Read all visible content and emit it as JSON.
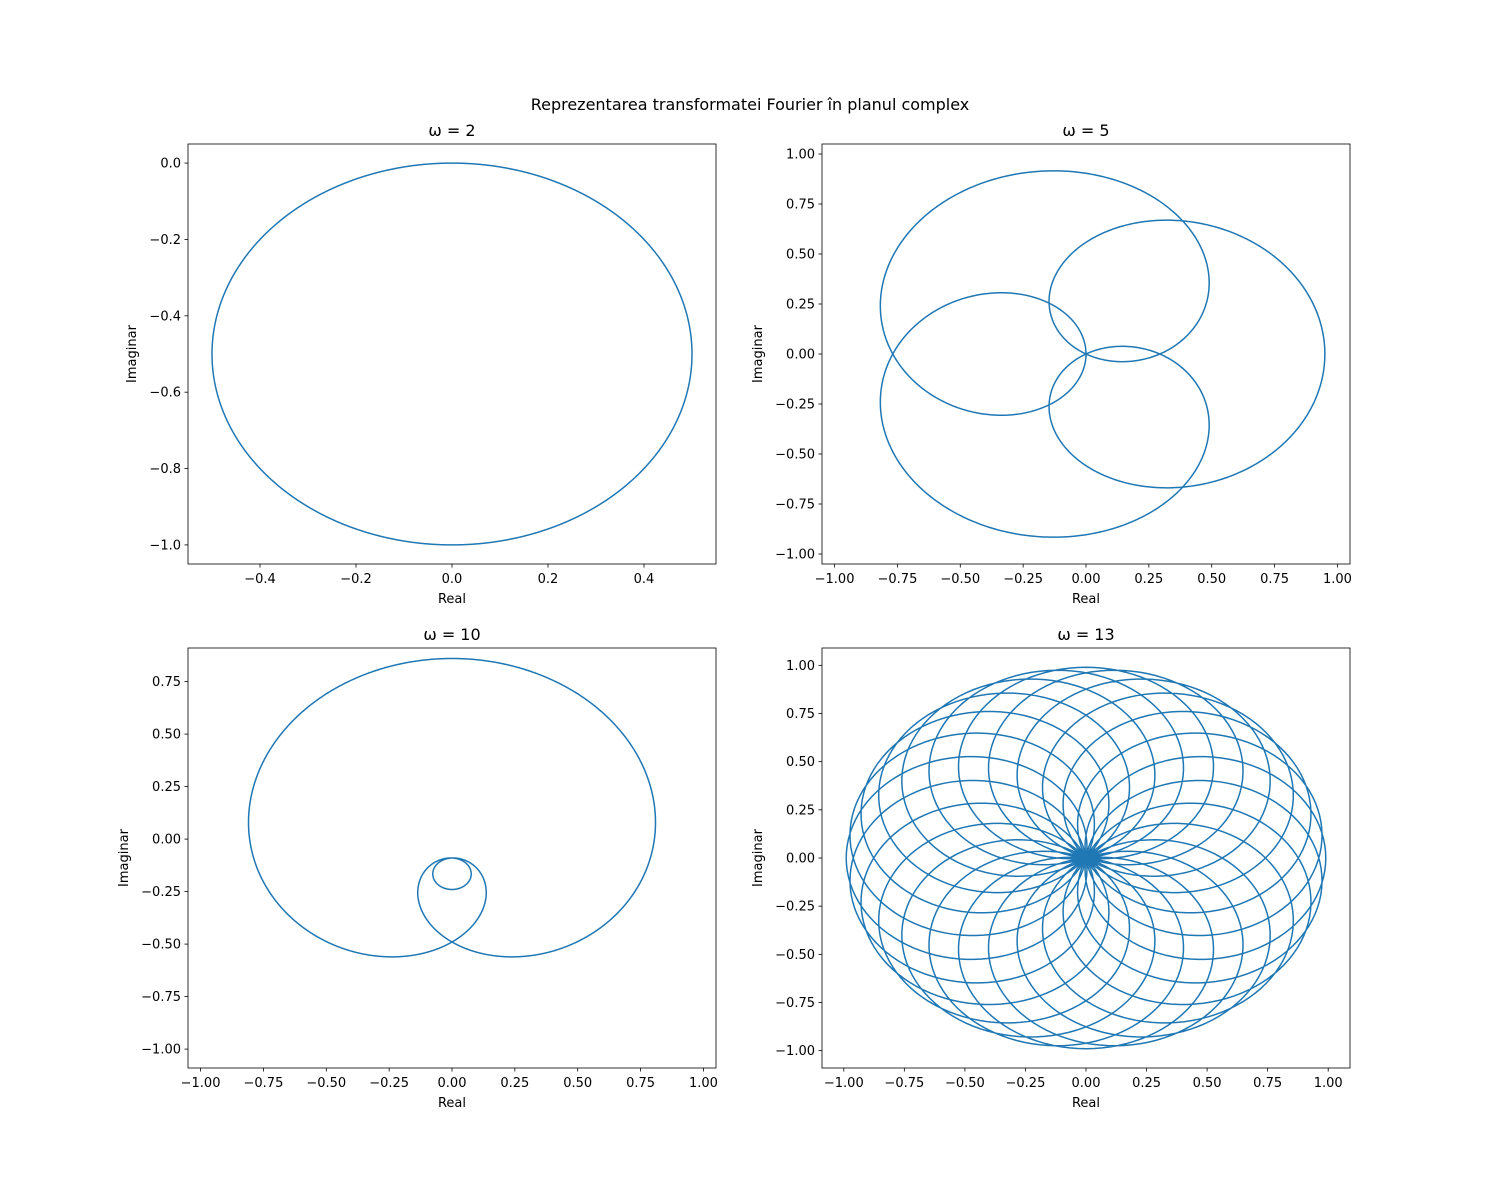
{
  "figure": {
    "suptitle": "Reprezentarea transformatei Fourier în planul complex",
    "line_color": "#1f77b4"
  },
  "chart_data": [
    {
      "type": "line",
      "title": "ω = 2",
      "omega": 2,
      "xlabel": "Real",
      "ylabel": "Imaginar",
      "xlim": [
        -0.55,
        0.55
      ],
      "ylim": [
        -1.05,
        0.05
      ],
      "xticks": [
        -0.4,
        -0.2,
        0.0,
        0.2,
        0.4
      ],
      "xtick_labels": [
        "−0.4",
        "−0.2",
        "0.0",
        "0.2",
        "0.4"
      ],
      "yticks": [
        0.0,
        -0.2,
        -0.4,
        -0.6,
        -0.8,
        -1.0
      ],
      "ytick_labels": [
        "0.0",
        "−0.2",
        "−0.4",
        "−0.6",
        "−0.8",
        "−1.0"
      ],
      "grid": false
    },
    {
      "type": "line",
      "title": "ω = 5",
      "omega": 5,
      "xlabel": "Real",
      "ylabel": "Imaginar",
      "xlim": [
        -1.05,
        1.05
      ],
      "ylim": [
        -1.05,
        1.05
      ],
      "xticks": [
        -1.0,
        -0.75,
        -0.5,
        -0.25,
        0.0,
        0.25,
        0.5,
        0.75,
        1.0
      ],
      "xtick_labels": [
        "−1.00",
        "−0.75",
        "−0.50",
        "−0.25",
        "0.00",
        "0.25",
        "0.50",
        "0.75",
        "1.00"
      ],
      "yticks": [
        1.0,
        0.75,
        0.5,
        0.25,
        0.0,
        -0.25,
        -0.5,
        -0.75,
        -1.0
      ],
      "ytick_labels": [
        "1.00",
        "0.75",
        "0.50",
        "0.25",
        "0.00",
        "−0.25",
        "−0.50",
        "−0.75",
        "−1.00"
      ],
      "grid": false
    },
    {
      "type": "line",
      "title": "ω = 10",
      "omega": 10,
      "xlabel": "Real",
      "ylabel": "Imaginar",
      "xlim": [
        -1.05,
        1.05
      ],
      "ylim": [
        -1.09,
        0.91
      ],
      "xticks": [
        -1.0,
        -0.75,
        -0.5,
        -0.25,
        0.0,
        0.25,
        0.5,
        0.75,
        1.0
      ],
      "xtick_labels": [
        "−1.00",
        "−0.75",
        "−0.50",
        "−0.25",
        "0.00",
        "0.25",
        "0.50",
        "0.75",
        "1.00"
      ],
      "yticks": [
        0.75,
        0.5,
        0.25,
        0.0,
        -0.25,
        -0.5,
        -0.75,
        -1.0
      ],
      "ytick_labels": [
        "0.75",
        "0.50",
        "0.25",
        "0.00",
        "−0.25",
        "−0.50",
        "−0.75",
        "−1.00"
      ],
      "grid": false
    },
    {
      "type": "line",
      "title": "ω = 13",
      "omega": 13,
      "xlabel": "Real",
      "ylabel": "Imaginar",
      "xlim": [
        -1.09,
        1.09
      ],
      "ylim": [
        -1.09,
        1.09
      ],
      "xticks": [
        -1.0,
        -0.75,
        -0.5,
        -0.25,
        0.0,
        0.25,
        0.5,
        0.75,
        1.0
      ],
      "xtick_labels": [
        "−1.00",
        "−0.75",
        "−0.50",
        "−0.25",
        "0.00",
        "0.25",
        "0.50",
        "0.75",
        "1.00"
      ],
      "yticks": [
        1.0,
        0.75,
        0.5,
        0.25,
        0.0,
        -0.25,
        -0.5,
        -0.75,
        -1.0
      ],
      "ytick_labels": [
        "1.00",
        "0.75",
        "0.50",
        "0.25",
        "0.00",
        "−0.25",
        "−0.50",
        "−0.75",
        "−1.00"
      ],
      "grid": false
    }
  ]
}
